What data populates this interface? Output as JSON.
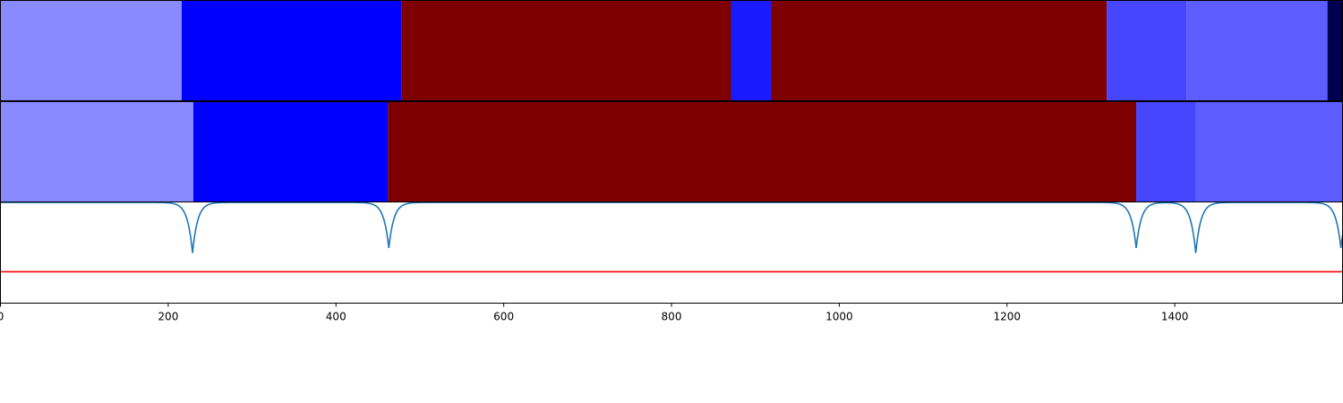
{
  "chart_data": [
    {
      "type": "heatmap",
      "panel": "top-band",
      "xlim": [
        0,
        1600
      ],
      "segments": [
        {
          "start": 0,
          "end": 216,
          "color": "#8a8aff"
        },
        {
          "start": 216,
          "end": 478,
          "color": "#0000ff"
        },
        {
          "start": 478,
          "end": 871,
          "color": "#7f0000"
        },
        {
          "start": 871,
          "end": 919,
          "color": "#1a1aff"
        },
        {
          "start": 919,
          "end": 1319,
          "color": "#7f0000"
        },
        {
          "start": 1319,
          "end": 1414,
          "color": "#4646ff"
        },
        {
          "start": 1414,
          "end": 1582,
          "color": "#5c5cff"
        },
        {
          "start": 1582,
          "end": 1600,
          "color": "#000050"
        }
      ]
    },
    {
      "type": "heatmap",
      "panel": "middle-band",
      "xlim": [
        0,
        1600
      ],
      "segments": [
        {
          "start": 0,
          "end": 230,
          "color": "#8a8aff"
        },
        {
          "start": 230,
          "end": 462,
          "color": "#0000ff"
        },
        {
          "start": 462,
          "end": 1354,
          "color": "#7f0000"
        },
        {
          "start": 1354,
          "end": 1425,
          "color": "#4646ff"
        },
        {
          "start": 1425,
          "end": 1600,
          "color": "#5c5cff"
        }
      ]
    },
    {
      "type": "line",
      "panel": "bottom-signal",
      "xlim": [
        0,
        1600
      ],
      "ylim": [
        0,
        1
      ],
      "grid": false,
      "series": [
        {
          "color": "#1f77b4",
          "baseline": 0.995,
          "dips": [
            {
              "x": 229,
              "depth": 0.5
            },
            {
              "x": 463,
              "depth": 0.45
            },
            {
              "x": 1354,
              "depth": 0.45
            },
            {
              "x": 1425,
              "depth": 0.5
            },
            {
              "x": 1598,
              "depth": 0.45
            }
          ]
        },
        {
          "color": "#ff0000",
          "values_constant": 0.31
        }
      ],
      "xticks": [
        0,
        200,
        400,
        600,
        800,
        1000,
        1200,
        1400
      ],
      "xtick_labels": [
        "0",
        "200",
        "400",
        "600",
        "800",
        "1000",
        "1200",
        "1400"
      ]
    }
  ]
}
